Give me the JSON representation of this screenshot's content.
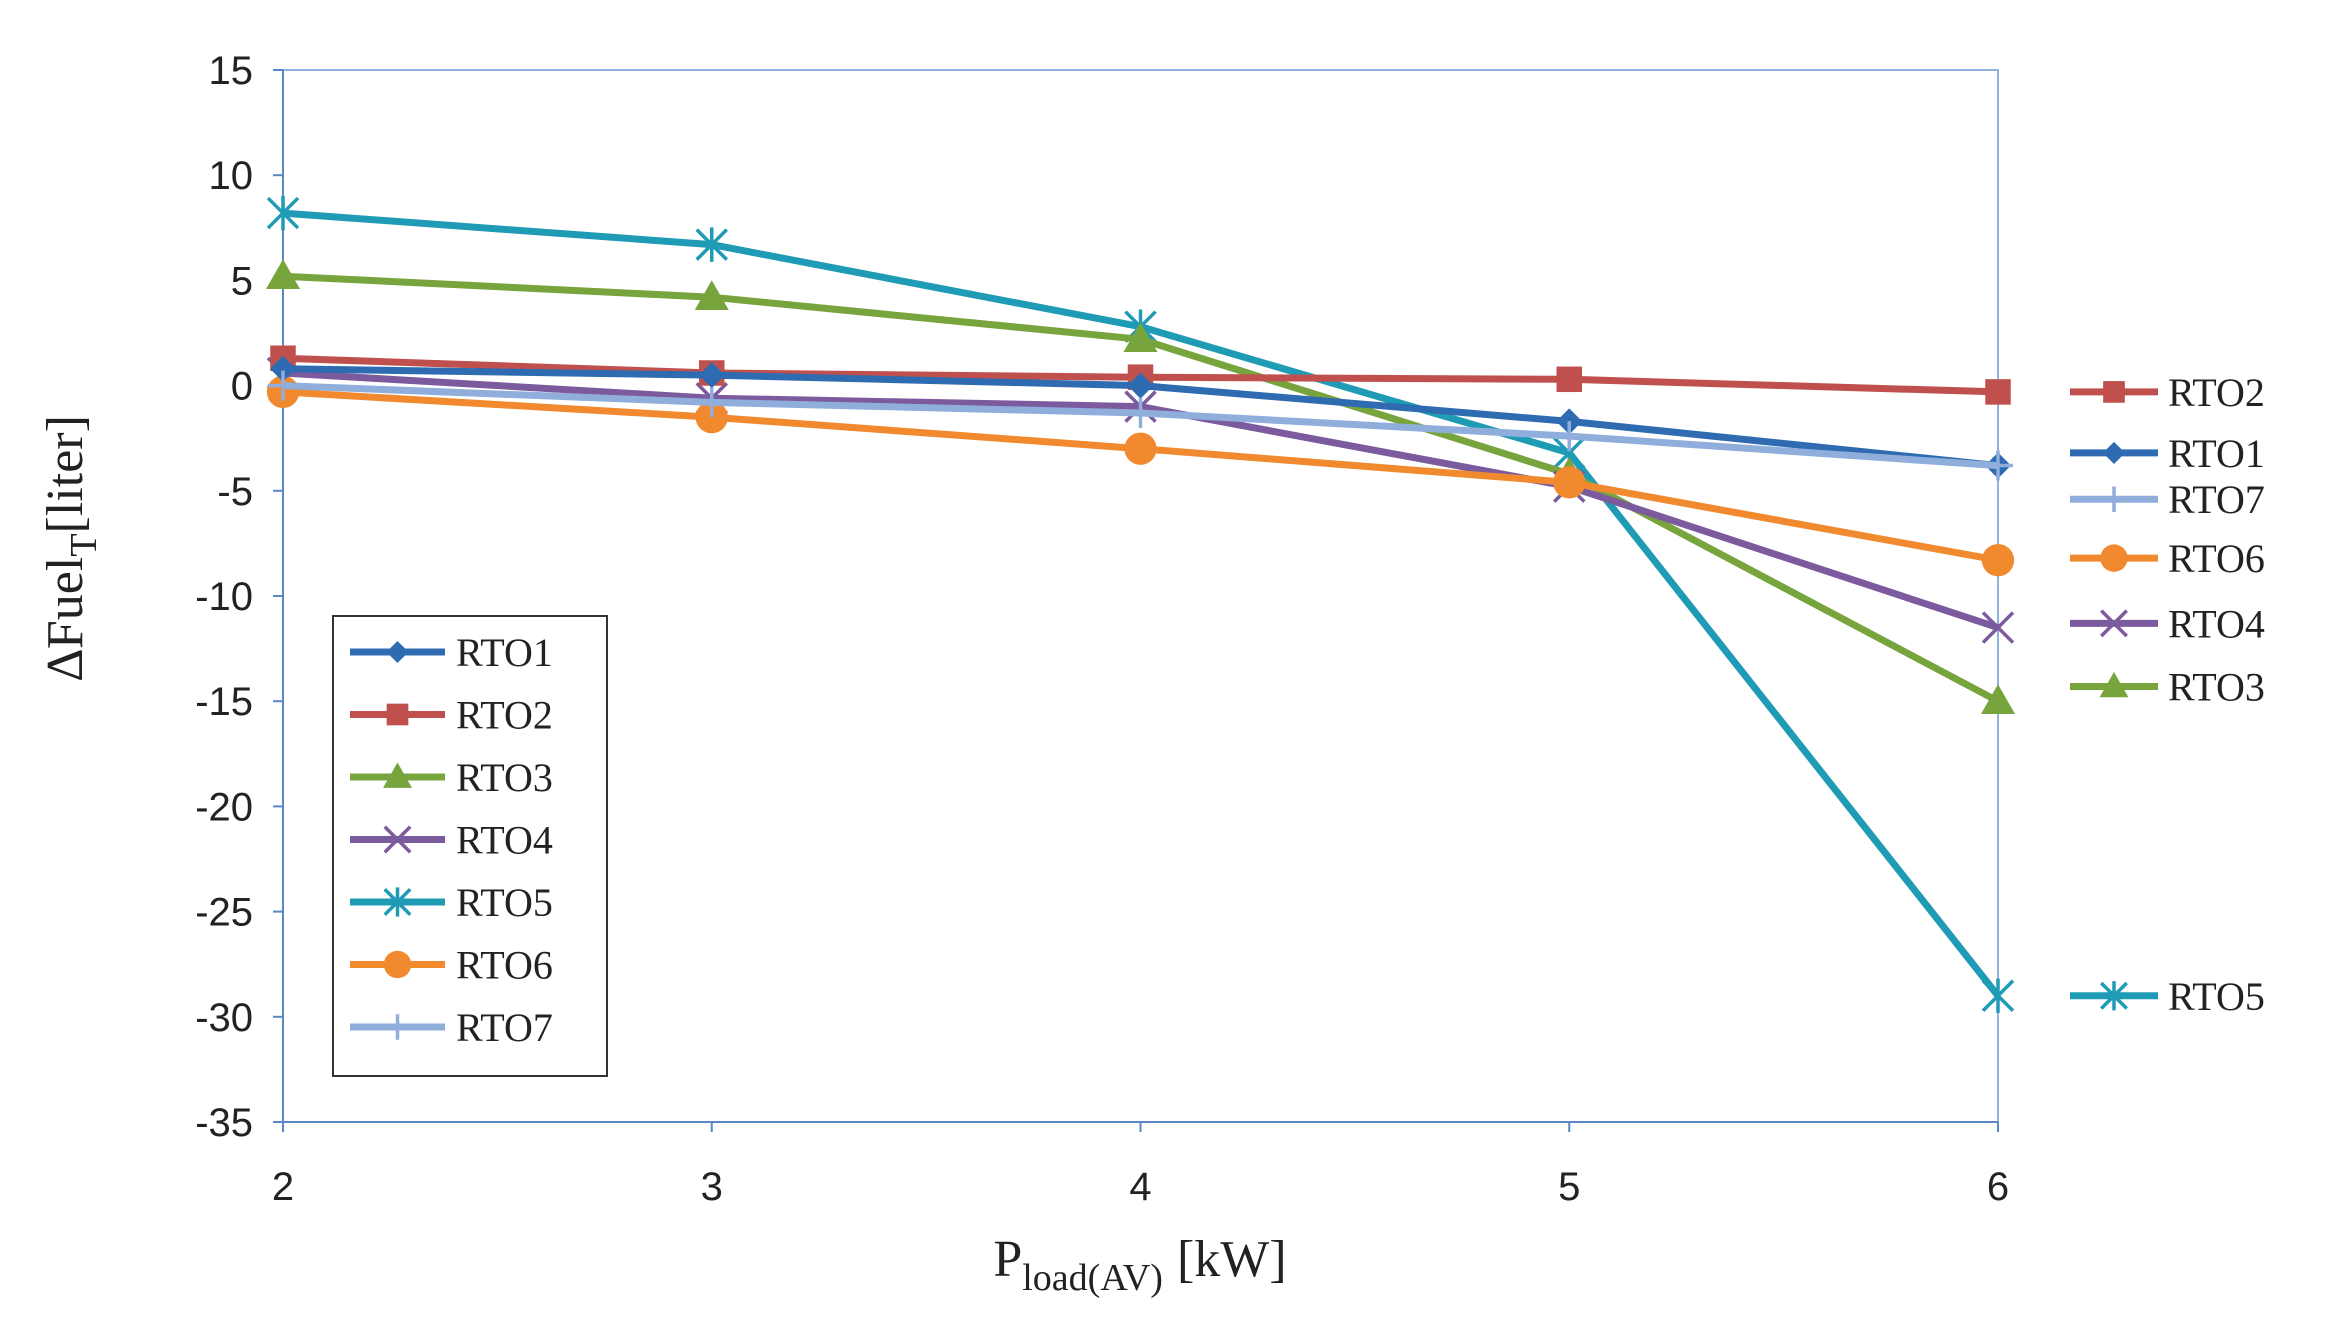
{
  "chart_data": {
    "type": "line",
    "title": "",
    "xlabel": {
      "main": "P",
      "sub": "load(AV)",
      "unit": "[kW]"
    },
    "ylabel": {
      "prefix": "∆Fuel",
      "sub": "T",
      "unit": "[liter]"
    },
    "x": [
      2,
      3,
      4,
      5,
      6
    ],
    "xlim": [
      2,
      6
    ],
    "ylim": [
      -35,
      15
    ],
    "yticks": [
      15,
      10,
      5,
      0,
      -5,
      -10,
      -15,
      -20,
      -25,
      -30,
      -35
    ],
    "grid": false,
    "legend": "lower-left",
    "series": [
      {
        "name": "RTO1",
        "color": "#2e6bb0",
        "marker": "diamond",
        "values": [
          0.8,
          0.5,
          0.0,
          -1.7,
          -3.8
        ]
      },
      {
        "name": "RTO2",
        "color": "#c0504d",
        "marker": "square",
        "values": [
          1.3,
          0.6,
          0.4,
          0.3,
          -0.3
        ]
      },
      {
        "name": "RTO3",
        "color": "#77a43c",
        "marker": "triangle",
        "values": [
          5.2,
          4.2,
          2.2,
          -4.2,
          -15.0
        ]
      },
      {
        "name": "RTO4",
        "color": "#7c5a9e",
        "marker": "x",
        "values": [
          0.6,
          -0.6,
          -1.0,
          -4.8,
          -11.5
        ]
      },
      {
        "name": "RTO5",
        "color": "#1f9bb5",
        "marker": "asterisk",
        "values": [
          8.2,
          6.7,
          2.8,
          -3.2,
          -29.0
        ]
      },
      {
        "name": "RTO6",
        "color": "#f18a2e",
        "marker": "circle",
        "values": [
          -0.3,
          -1.5,
          -3.0,
          -4.6,
          -8.3
        ]
      },
      {
        "name": "RTO7",
        "color": "#8faedb",
        "marker": "plus",
        "values": [
          0.0,
          -0.8,
          -1.3,
          -2.4,
          -3.8
        ]
      }
    ],
    "end_labels": [
      {
        "name": "RTO2",
        "y": -0.3
      },
      {
        "name": "RTO1",
        "y": -3.2
      },
      {
        "name": "RTO7",
        "y": -5.4
      },
      {
        "name": "RTO6",
        "y": -8.2
      },
      {
        "name": "RTO4",
        "y": -11.3
      },
      {
        "name": "RTO3",
        "y": -14.3
      },
      {
        "name": "RTO5",
        "y": -29.0
      }
    ]
  }
}
